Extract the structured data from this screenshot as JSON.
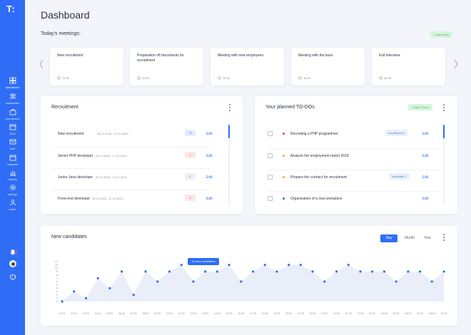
{
  "app": {
    "logo": "T:"
  },
  "sidebar": {
    "items": [
      {
        "label": "dashboard",
        "icon": "dashboard-icon"
      },
      {
        "label": "candidates",
        "icon": "candidates-icon"
      },
      {
        "label": "recruitment",
        "icon": "recruitment-icon"
      },
      {
        "label": "CEO",
        "icon": "calendar-icon"
      },
      {
        "label": "mail",
        "icon": "mail-icon"
      },
      {
        "label": "calendar",
        "icon": "calendar-icon"
      },
      {
        "label": "reports",
        "icon": "reports-icon"
      },
      {
        "label": "settings",
        "icon": "gear-icon"
      },
      {
        "label": "users",
        "icon": "users-icon"
      }
    ],
    "bottom_icons": [
      "bell-icon",
      "avatar",
      "power-icon"
    ]
  },
  "header": {
    "title": "Dashboard"
  },
  "meetings": {
    "title": "Today's meetings:",
    "add_label": "+ Add event",
    "items": [
      {
        "title": "New recruitment",
        "time": "14:30"
      },
      {
        "title": "Preparation off documents for recruitment",
        "time": "15:00"
      },
      {
        "title": "Meeting with new employees",
        "time": "15:30"
      },
      {
        "title": "Meeting with the boss",
        "time": "16:00"
      },
      {
        "title": "Exit interview",
        "time": "16:30"
      }
    ]
  },
  "recruitment": {
    "title": "Recruitment",
    "edit_label": "Edit",
    "rows": [
      {
        "name": "New recruitment",
        "dates": "28.12.2018 - 17.01.2019",
        "badge": "+3",
        "badge_color": "#2f6df6",
        "badge_bg": "#e4ecfd"
      },
      {
        "name": "Senior PHP developer",
        "dates": "28.12.2018 - 17.01.2019",
        "badge": "1",
        "badge_color": "#e54848",
        "badge_bg": "#fde6e6"
      },
      {
        "name": "Junior Java developer",
        "dates": "28.12.2018 - 17.01.2019",
        "badge": "0",
        "badge_color": "#7b869c",
        "badge_bg": "#eceff4"
      },
      {
        "name": "Front-end developer",
        "dates": "28.12.2018 - 17.01.2019",
        "badge": "0",
        "badge_color": "#e54848",
        "badge_bg": "#fde6e6"
      }
    ]
  },
  "todos": {
    "title": "Your planned TO-DOs",
    "add_label": "+ Add TO-DO",
    "edit_label": "Edit",
    "rows": [
      {
        "text": "Recruiting a PHP programmer",
        "dot_color": "#e54848",
        "tag": "recruitment 2"
      },
      {
        "text": "Analyze the employment report 2018",
        "dot_color": "#f5a623",
        "tag": ""
      },
      {
        "text": "Prepare the contract for recruitment",
        "dot_color": "#f5a623",
        "tag": "candidate 1"
      },
      {
        "text": "Organization of a new workplace",
        "dot_color": "#2f6df6",
        "tag": ""
      }
    ]
  },
  "candidates": {
    "title": "New candidates",
    "periods": [
      "Day",
      "Month",
      "Year"
    ],
    "active_period": "Day",
    "tooltip": "10 new candidates"
  },
  "colors": {
    "accent": "#2f6df6",
    "sidebar": "#2f6df6",
    "background": "#f3f5fa"
  },
  "chart_data": {
    "type": "area",
    "x": [
      "01:00",
      "02:00",
      "03:00",
      "04:00",
      "05:00",
      "06:00",
      "07:00",
      "08:00",
      "09:00",
      "10:00",
      "11:00",
      "12:00",
      "13:00",
      "14:00",
      "15:00",
      "16:00",
      "17:00",
      "18:00",
      "19:00",
      "20:00",
      "21:00",
      "22:00",
      "23:00",
      "24:00",
      "01:00",
      "02:00",
      "03:00",
      "04:00",
      "05:00",
      "06:00",
      "07:00",
      "08:00",
      "09:00"
    ],
    "values": [
      0,
      3,
      1,
      7,
      4,
      9,
      2,
      9,
      6,
      9,
      11,
      6,
      9,
      9,
      11,
      6,
      9,
      11,
      9,
      11,
      11,
      9,
      6,
      9,
      11,
      9,
      9,
      9,
      6,
      9,
      9,
      6,
      9
    ],
    "ylim": [
      0,
      12
    ],
    "yticks": [
      0,
      1,
      2,
      3,
      4,
      5,
      6,
      7,
      8,
      9,
      10,
      11,
      12
    ],
    "grid": false
  }
}
